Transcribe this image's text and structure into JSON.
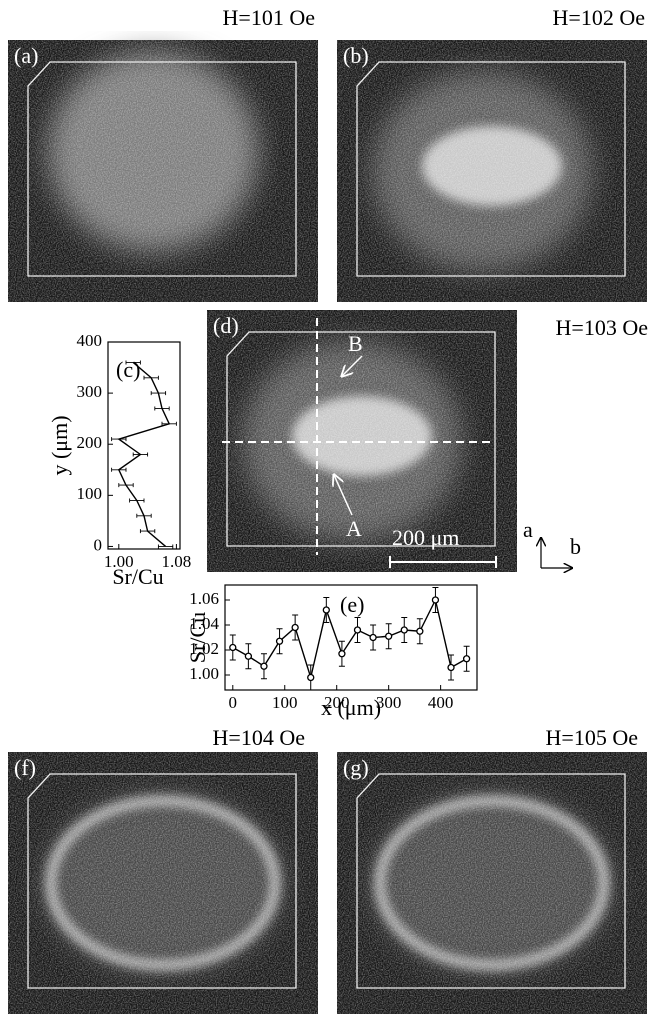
{
  "panels": [
    {
      "label": "(a)",
      "field": "H=101 Oe"
    },
    {
      "label": "(b)",
      "field": "H=102 Oe"
    },
    {
      "label": "(d)",
      "field": "H=103 Oe"
    },
    {
      "label": "(f)",
      "field": "H=104 Oe"
    },
    {
      "label": "(g)",
      "field": "H=105 Oe"
    }
  ],
  "annotations": {
    "point_a": "A",
    "point_b": "B",
    "scale_bar": "200 μm",
    "axis_a": "a",
    "axis_b": "b"
  },
  "chart_data": [
    {
      "type": "profile",
      "label": "(c)",
      "xlabel": "Sr/Cu",
      "ylabel": "y (μm)",
      "y": [
        0,
        30,
        60,
        90,
        120,
        150,
        180,
        210,
        240,
        270,
        300,
        330,
        360
      ],
      "values": [
        1.065,
        1.04,
        1.035,
        1.025,
        1.01,
        1.0,
        1.03,
        1.0,
        1.07,
        1.06,
        1.055,
        1.045,
        1.02
      ],
      "errors": [
        0.01,
        0.01,
        0.01,
        0.01,
        0.01,
        0.01,
        0.01,
        0.01,
        0.01,
        0.01,
        0.01,
        0.01,
        0.01
      ],
      "xlim": [
        0.985,
        1.085
      ],
      "xticks": [
        {
          "value": 1.0,
          "label": "1.00"
        },
        {
          "value": 1.08,
          "label": "1.08"
        }
      ],
      "ylim": [
        -5,
        400
      ],
      "yticks": [
        0,
        100,
        200,
        300,
        400
      ],
      "color": "#000000"
    },
    {
      "type": "line",
      "label": "(e)",
      "xlabel": "x (μm)",
      "ylabel": "Sr/Cu",
      "x": [
        0,
        30,
        60,
        90,
        120,
        150,
        180,
        210,
        240,
        270,
        300,
        330,
        360,
        390,
        420,
        450
      ],
      "values": [
        1.022,
        1.015,
        1.007,
        1.027,
        1.038,
        0.998,
        1.052,
        1.017,
        1.036,
        1.03,
        1.031,
        1.036,
        1.035,
        1.06,
        1.006,
        1.013
      ],
      "errors": [
        0.01,
        0.01,
        0.01,
        0.01,
        0.01,
        0.01,
        0.01,
        0.01,
        0.01,
        0.01,
        0.01,
        0.01,
        0.01,
        0.01,
        0.01,
        0.01
      ],
      "xlim": [
        -15,
        470
      ],
      "xticks": [
        0,
        100,
        200,
        300,
        400
      ],
      "ylim": [
        0.988,
        1.072
      ],
      "yticks": [
        {
          "value": 1.0,
          "label": "1.00"
        },
        {
          "value": 1.02,
          "label": "1.02"
        },
        {
          "value": 1.04,
          "label": "1.04"
        },
        {
          "value": 1.06,
          "label": "1.06"
        }
      ],
      "color": "#000000"
    }
  ]
}
